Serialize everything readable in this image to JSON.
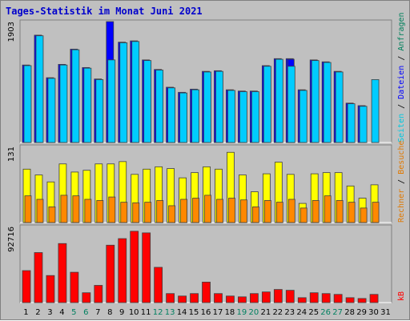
{
  "colors": {
    "background": "#c0c0c0",
    "plot": "#c0c0c0",
    "title": "#0000cc",
    "anfragen": "#00805c",
    "dateien": "#0000ff",
    "seiten": "#00c8e0",
    "besuche": "#e07800",
    "rechner": "#e07800",
    "kb": "#ff0000",
    "weekend": "#008060",
    "day_label": "#000000"
  },
  "chart_data": {
    "type": "bar",
    "title": "Tages-Statistik im Monat Juni 2021",
    "x": [
      1,
      2,
      3,
      4,
      5,
      6,
      7,
      8,
      9,
      10,
      11,
      12,
      13,
      14,
      15,
      16,
      17,
      18,
      19,
      20,
      21,
      22,
      23,
      24,
      25,
      26,
      27,
      28,
      29,
      30,
      31
    ],
    "weekend_days": [
      5,
      6,
      12,
      13,
      19,
      20,
      26,
      27
    ],
    "panels": [
      {
        "id": "hits",
        "max_label": "1903",
        "ymax": 1903,
        "series": [
          {
            "name": "Anfragen",
            "color": "#0000ff",
            "values": [
              1220,
              1690,
              1020,
              1230,
              1470,
              1180,
              1000,
              1903,
              1580,
              1600,
              1300,
              1150,
              870,
              790,
              840,
              1120,
              1130,
              830,
              810,
              810,
              1210,
              1320,
              1320,
              830,
              1300,
              1270,
              1120,
              620,
              580,
              0,
              0
            ]
          },
          {
            "name": "Dateien",
            "color": "#0000ff",
            "values": [
              0,
              0,
              0,
              0,
              0,
              0,
              0,
              0,
              0,
              0,
              0,
              0,
              0,
              0,
              0,
              0,
              0,
              0,
              0,
              0,
              0,
              0,
              1310,
              0,
              0,
              0,
              0,
              0,
              0,
              0,
              0
            ]
          },
          {
            "name": "Seiten",
            "color": "#00ccff",
            "values": [
              1210,
              1680,
              1010,
              1220,
              1460,
              1170,
              990,
              1300,
              1570,
              1590,
              1290,
              1140,
              860,
              780,
              830,
              1110,
              1120,
              820,
              800,
              800,
              1200,
              1310,
              1200,
              820,
              1290,
              1260,
              1110,
              610,
              570,
              990,
              0
            ]
          }
        ]
      },
      {
        "id": "visits",
        "max_label": "131",
        "ymax": 131,
        "series": [
          {
            "name": "Besuche",
            "color": "#ffff00",
            "values": [
              92,
              82,
              70,
              101,
              87,
              90,
              101,
              101,
              105,
              83,
              92,
              96,
              93,
              77,
              86,
              96,
              92,
              121,
              82,
              53,
              84,
              104,
              83,
              33,
              84,
              86,
              86,
              63,
              42,
              65,
              0
            ]
          },
          {
            "name": "Rechner",
            "color": "#ff8800",
            "values": [
              46,
              40,
              27,
              47,
              46,
              40,
              38,
              44,
              35,
              34,
              35,
              38,
              29,
              40,
              42,
              47,
              40,
              42,
              39,
              27,
              38,
              35,
              40,
              25,
              38,
              46,
              38,
              35,
              25,
              35,
              0
            ]
          }
        ]
      },
      {
        "id": "kb",
        "max_label": "92716",
        "ymax": 92716,
        "series": [
          {
            "name": "kB",
            "color": "#ff0000",
            "values": [
              39000,
              61000,
              33000,
              72000,
              37000,
              12000,
              21000,
              70000,
              78000,
              87000,
              85000,
              43000,
              11000,
              8000,
              11000,
              25000,
              11000,
              8000,
              7000,
              11000,
              13000,
              16000,
              15000,
              6000,
              12000,
              11000,
              10000,
              6000,
              5000,
              10000,
              0
            ]
          }
        ]
      }
    ],
    "right_label_hits": [
      {
        "text": "Seiten",
        "color": "#00c8e0"
      },
      {
        "text": " / ",
        "color": "#000000"
      },
      {
        "text": "Dateien",
        "color": "#0000ff"
      },
      {
        "text": " / ",
        "color": "#000000"
      },
      {
        "text": "Anfragen",
        "color": "#00805c"
      }
    ],
    "right_label_visits": [
      {
        "text": "Rechner",
        "color": "#e07800"
      },
      {
        "text": " / ",
        "color": "#000000"
      },
      {
        "text": "Besuche",
        "color": "#e07800"
      }
    ],
    "right_label_kb": [
      {
        "text": "kB",
        "color": "#ff0000"
      }
    ]
  }
}
